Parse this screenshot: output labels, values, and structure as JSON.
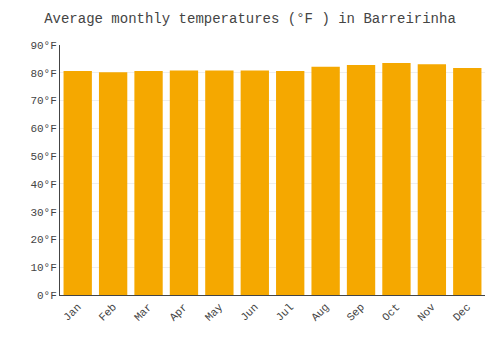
{
  "chart_data": {
    "type": "bar",
    "title": "Average monthly temperatures (°F ) in Barreirinha",
    "categories": [
      "Jan",
      "Feb",
      "Mar",
      "Apr",
      "May",
      "Jun",
      "Jul",
      "Aug",
      "Sep",
      "Oct",
      "Nov",
      "Dec"
    ],
    "values": [
      80.6,
      80.2,
      80.6,
      80.8,
      80.8,
      80.8,
      80.6,
      82.2,
      82.8,
      83.5,
      83.1,
      81.7
    ],
    "color": "#F5A800",
    "ylim": [
      0,
      90
    ],
    "yticks": [
      {
        "value": 0,
        "label": "0°F"
      },
      {
        "value": 10,
        "label": "10°F"
      },
      {
        "value": 20,
        "label": "20°F"
      },
      {
        "value": 30,
        "label": "30°F"
      },
      {
        "value": 40,
        "label": "40°F"
      },
      {
        "value": 50,
        "label": "50°F"
      },
      {
        "value": 60,
        "label": "60°F"
      },
      {
        "value": 70,
        "label": "70°F"
      },
      {
        "value": 80,
        "label": "80°F"
      },
      {
        "value": 90,
        "label": "90°F"
      }
    ],
    "grid": true
  }
}
